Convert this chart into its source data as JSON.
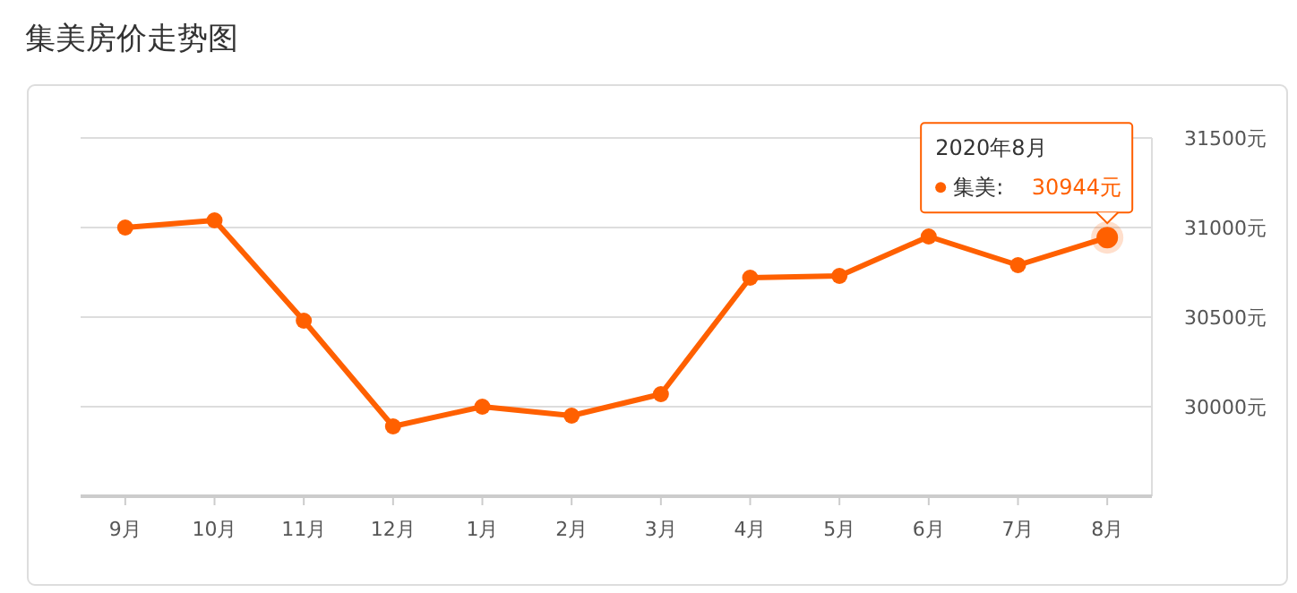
{
  "chart_data": {
    "type": "line",
    "title": "集美房价走势图",
    "categories": [
      "9月",
      "10月",
      "11月",
      "12月",
      "1月",
      "2月",
      "3月",
      "4月",
      "5月",
      "6月",
      "7月",
      "8月"
    ],
    "series": [
      {
        "name": "集美:",
        "color": "#ff6000",
        "values": [
          31000,
          31040,
          30480,
          29890,
          30000,
          29950,
          30070,
          30720,
          30730,
          30950,
          30790,
          30944
        ],
        "value_labels": [
          null,
          null,
          null,
          null,
          null,
          null,
          null,
          null,
          null,
          null,
          null,
          "30944元"
        ]
      }
    ],
    "ylim": [
      29500,
      31500
    ],
    "yticks": [
      {
        "value": 30000,
        "label": "30000元"
      },
      {
        "value": 30500,
        "label": "30500元"
      },
      {
        "value": 31000,
        "label": "31000元"
      },
      {
        "value": 31500,
        "label": "31500元"
      }
    ],
    "grid": "y",
    "marker": "circle",
    "line_style": "solid",
    "legend": "right",
    "annotations": [
      "2020年8月"
    ]
  }
}
